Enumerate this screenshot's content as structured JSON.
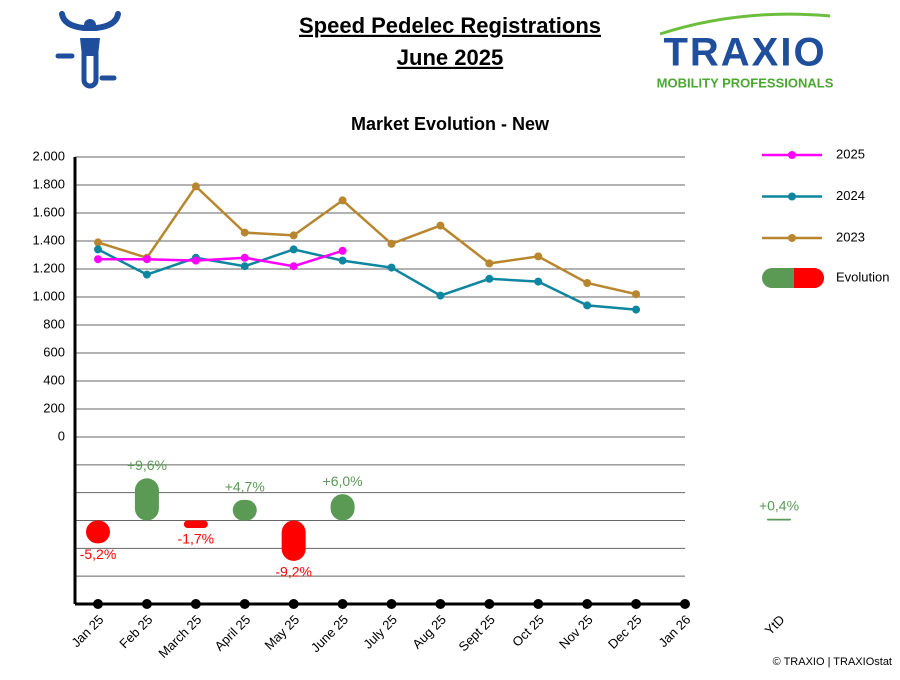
{
  "header": {
    "title": "Speed Pedelec Registrations",
    "subtitle": "June 2025",
    "logo": "TRAXIO",
    "logo_tagline": "MOBILITY PROFESSIONALS"
  },
  "chart_data": {
    "type": "line",
    "title": "Market Evolution - New",
    "categories": [
      "Jan 25",
      "Feb 25",
      "March 25",
      "April 25",
      "May 25",
      "June 25",
      "July 25",
      "Aug 25",
      "Sept 25",
      "Oct 25",
      "Nov 25",
      "Dec 25",
      "Jan 26"
    ],
    "series": [
      {
        "name": "2025",
        "color": "#ff00ff",
        "values": [
          1270,
          1270,
          1260,
          1280,
          1220,
          1330,
          null,
          null,
          null,
          null,
          null,
          null,
          null
        ]
      },
      {
        "name": "2024",
        "color": "#0e86a0",
        "values": [
          1340,
          1160,
          1280,
          1220,
          1340,
          1260,
          1210,
          1010,
          1130,
          1110,
          940,
          910,
          null
        ]
      },
      {
        "name": "2023",
        "color": "#b8862e",
        "values": [
          1390,
          1280,
          1790,
          1460,
          1440,
          1690,
          1380,
          1510,
          1240,
          1290,
          1100,
          1020,
          null
        ]
      }
    ],
    "evolution": {
      "name": "Evolution",
      "positive_color": "#5a9a55",
      "negative_color": "#ff0000",
      "values": [
        -5.2,
        9.6,
        -1.7,
        4.7,
        -9.2,
        6.0,
        null,
        null,
        null,
        null,
        null,
        null,
        null
      ],
      "value_labels": [
        "-5,2%",
        "+9,6%",
        "-1,7%",
        "+4,7%",
        "-9,2%",
        "+6,0%",
        null,
        null,
        null,
        null,
        null,
        null,
        null
      ]
    },
    "ytd": {
      "label": "YtD",
      "value": 0.4,
      "value_label": "+0,4%"
    },
    "ylim": [
      0,
      2000
    ],
    "yticks": [
      0,
      {
        "value": 200,
        "label": "200"
      },
      400,
      600,
      800,
      {
        "value": 1000,
        "label": "1.000"
      },
      {
        "value": 1200,
        "label": "1.200"
      },
      {
        "value": 1400,
        "label": "1.400"
      },
      {
        "value": 1600,
        "label": "1.600"
      },
      {
        "value": 1800,
        "label": "1.800"
      },
      {
        "value": 2000,
        "label": "2.000"
      }
    ],
    "y2lim": [
      -19,
      19
    ],
    "grid": true
  },
  "footer": {
    "copyright": "© TRAXIO | TRAXIOstat"
  }
}
